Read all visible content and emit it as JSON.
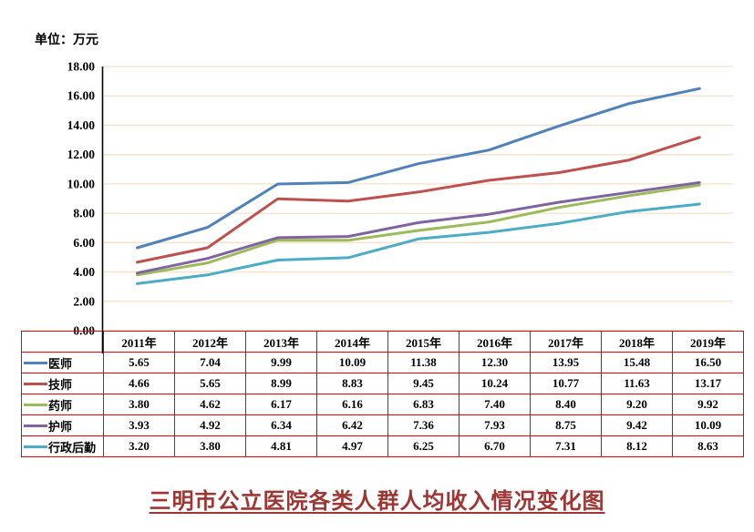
{
  "unit_label": "单位：万元",
  "chart_data": {
    "type": "line",
    "title": "三明市公立医院各类人群人均收入情况变化图",
    "unit_label": "单位：万元",
    "categories": [
      "2011年",
      "2012年",
      "2013年",
      "2014年",
      "2015年",
      "2016年",
      "2017年",
      "2018年",
      "2019年"
    ],
    "series": [
      {
        "name": "医师",
        "color": "#4F81BD",
        "values": [
          5.65,
          7.04,
          9.99,
          10.09,
          11.38,
          12.3,
          13.95,
          15.48,
          16.5
        ]
      },
      {
        "name": "技师",
        "color": "#C0504D",
        "values": [
          4.66,
          5.65,
          8.99,
          8.83,
          9.45,
          10.24,
          10.77,
          11.63,
          13.17
        ]
      },
      {
        "name": "药师",
        "color": "#9BBB59",
        "values": [
          3.8,
          4.62,
          6.17,
          6.16,
          6.83,
          7.4,
          8.4,
          9.2,
          9.92
        ]
      },
      {
        "name": "护师",
        "color": "#8064A2",
        "values": [
          3.93,
          4.92,
          6.34,
          6.42,
          7.36,
          7.93,
          8.75,
          9.42,
          10.09
        ]
      },
      {
        "name": "行政后勤",
        "color": "#4BACC6",
        "values": [
          3.2,
          3.8,
          4.81,
          4.97,
          6.25,
          6.7,
          7.31,
          8.12,
          8.63
        ]
      }
    ],
    "y_axis": {
      "min": 0,
      "max": 18,
      "step": 2,
      "tick_labels": [
        "18.00",
        "16.00",
        "14.00",
        "12.00",
        "10.00",
        "8.00",
        "6.00",
        "4.00",
        "2.00",
        "0.00"
      ]
    },
    "grid": true,
    "legend_position": "table-left",
    "colors": {
      "table_border": "#EE0000",
      "gridline": "#FADFC9",
      "axis_line": "#000000",
      "axis_text": "#000000",
      "title_color": "#A03633"
    }
  }
}
